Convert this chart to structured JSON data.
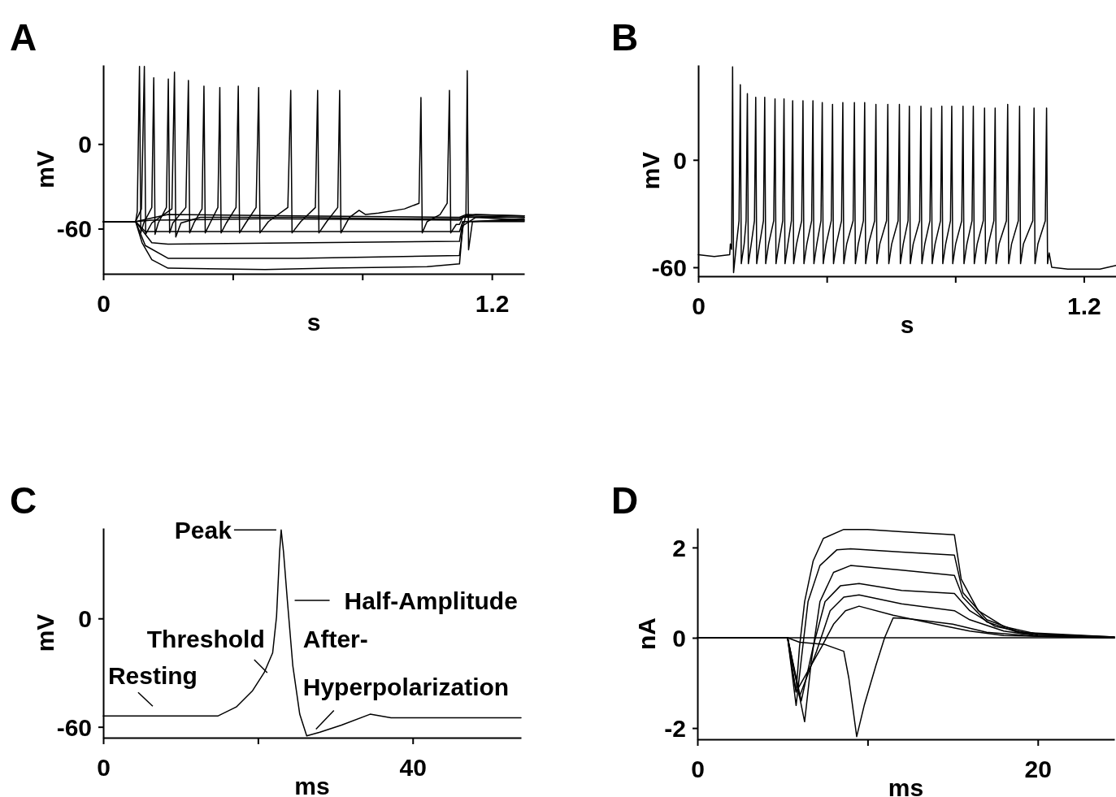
{
  "chart_data": [
    {
      "type": "line",
      "title": "A",
      "xlabel": "s",
      "ylabel": "mV",
      "xlim": [
        0,
        1.3
      ],
      "ylim": [
        -92,
        56
      ],
      "xticks": [
        0,
        {
          "value": 0.4,
          "label": null
        },
        {
          "value": 0.8,
          "label": null
        },
        1.2
      ],
      "yticks": [
        -60,
        0
      ],
      "series": [
        {
          "color": "#000000",
          "x": [
            0,
            0.1,
            0.12,
            0.15,
            0.2,
            0.5,
            0.7,
            1.0,
            1.1,
            1.11,
            1.15,
            1.3
          ],
          "values": [
            -55,
            -55,
            -70,
            -82,
            -88,
            -89,
            -88,
            -87,
            -85,
            -58,
            -52,
            -54
          ]
        },
        {
          "color": "#000000",
          "x": [
            0,
            0.1,
            0.13,
            0.2,
            0.6,
            1.1,
            1.11,
            1.12,
            1.124,
            1.128,
            1.14,
            1.3
          ],
          "values": [
            -55,
            -55,
            -72,
            -81,
            -81,
            -79,
            -60,
            -50,
            52,
            -75,
            -55,
            -53
          ]
        },
        {
          "color": "#000000",
          "x": [
            0,
            0.1,
            0.15,
            0.2,
            1.1,
            1.11,
            1.3
          ],
          "values": [
            -55,
            -55,
            -70,
            -71,
            -69,
            -55,
            -55
          ]
        },
        {
          "color": "#000000",
          "x": [
            0,
            0.1,
            0.13,
            1.1,
            1.11,
            1.3
          ],
          "values": [
            -55,
            -55,
            -62,
            -62,
            -55,
            -54
          ]
        },
        {
          "color": "#000000",
          "x": [
            0,
            0.1,
            0.15,
            0.5,
            1.1,
            1.11,
            1.3
          ],
          "values": [
            -55,
            -55,
            -54,
            -53,
            -54,
            -52,
            -52
          ]
        },
        {
          "color": "#000000",
          "x": [
            0,
            0.1,
            0.2,
            0.6,
            1.1,
            1.12,
            1.3
          ],
          "values": [
            -55,
            -55,
            -50,
            -51,
            -52,
            -50,
            -51
          ]
        },
        {
          "color": "#000000",
          "x": [
            0,
            0.1,
            0.105,
            0.112,
            0.116,
            0.125,
            0.15,
            0.156,
            0.16,
            0.17,
            0.195,
            0.201,
            0.205,
            0.215,
            0.255,
            0.263,
            0.267,
            0.28,
            0.305,
            0.311,
            0.315,
            0.33,
            0.354,
            0.36,
            0.364,
            0.38,
            0.41,
            0.417,
            0.421,
            0.44,
            0.472,
            0.48,
            0.484,
            0.51,
            0.57,
            0.579,
            0.583,
            0.61,
            0.655,
            0.662,
            0.666,
            0.69,
            0.724,
            0.73,
            0.734,
            0.76,
            0.79,
            0.81,
            0.85,
            0.93,
            0.975,
            0.981,
            0.985,
            1.0,
            1.04,
            1.062,
            1.069,
            1.073,
            1.09,
            1.1,
            1.11,
            1.15,
            1.3
          ],
          "values": [
            -55,
            -55,
            -48,
            55,
            -63,
            -56,
            -45,
            47,
            -64,
            -56,
            -45,
            46,
            -63,
            -56,
            -45,
            45,
            -63,
            -56,
            -46,
            41,
            -63,
            -56,
            -45,
            40,
            -63,
            -56,
            -45,
            41,
            -63,
            -56,
            -45,
            40,
            -63,
            -55,
            -45,
            38,
            -63,
            -55,
            -45,
            38,
            -63,
            -55,
            -45,
            38,
            -63,
            -52,
            -47,
            -50,
            -49,
            -46,
            -42,
            33,
            -63,
            -55,
            -50,
            -42,
            38,
            -63,
            -57,
            -57,
            -52,
            -50,
            -51
          ]
        },
        {
          "color": "#000000",
          "x": [
            0,
            0.1,
            0.118,
            0.127,
            0.131,
            0.15,
            0.212,
            0.22,
            0.224,
            0.24,
            0.3,
            0.6,
            0.9,
            1.1,
            1.12,
            1.3
          ],
          "values": [
            -55,
            -55,
            -46,
            55,
            -64,
            -56,
            -46,
            51,
            -66,
            -56,
            -52,
            -52,
            -53,
            -53,
            -51,
            -52
          ]
        }
      ]
    },
    {
      "type": "line",
      "title": "B",
      "xlabel": "s",
      "ylabel": "mV",
      "xlim": [
        0,
        1.3
      ],
      "ylim": [
        -65,
        53
      ],
      "xticks": [
        0,
        {
          "value": 0.4,
          "label": null
        },
        {
          "value": 0.8,
          "label": null
        },
        1.2
      ],
      "yticks": [
        -60,
        0
      ],
      "series": [
        {
          "color": "#000000",
          "x": [
            0,
            0.05,
            0.098,
            0.1,
            0.104,
            0.107,
            0.11,
            0.119,
            0.127,
            0.131,
            0.134,
            0.143,
            0.149,
            0.153,
            0.156,
            0.165,
            0.175,
            0.179,
            0.182,
            0.191,
            0.203,
            0.207,
            0.21,
            0.219,
            0.235,
            0.239,
            0.242,
            0.251,
            0.263,
            0.267,
            0.27,
            0.279,
            0.29,
            0.294,
            0.297,
            0.306,
            0.322,
            0.326,
            0.329,
            0.338,
            0.353,
            0.357,
            0.36,
            0.369,
            0.382,
            0.386,
            0.389,
            0.398,
            0.414,
            0.418,
            0.421,
            0.43,
            0.446,
            0.45,
            0.453,
            0.462,
            0.482,
            0.486,
            0.489,
            0.498,
            0.514,
            0.518,
            0.521,
            0.53,
            0.549,
            0.553,
            0.556,
            0.565,
            0.586,
            0.59,
            0.593,
            0.602,
            0.622,
            0.626,
            0.629,
            0.638,
            0.653,
            0.657,
            0.66,
            0.669,
            0.689,
            0.693,
            0.696,
            0.705,
            0.721,
            0.725,
            0.728,
            0.737,
            0.754,
            0.758,
            0.761,
            0.77,
            0.785,
            0.789,
            0.792,
            0.801,
            0.82,
            0.824,
            0.827,
            0.836,
            0.852,
            0.856,
            0.859,
            0.868,
            0.887,
            0.891,
            0.894,
            0.903,
            0.92,
            0.924,
            0.927,
            0.936,
            0.959,
            0.963,
            0.966,
            0.975,
            0.996,
            1.0,
            1.003,
            1.012,
            1.041,
            1.045,
            1.048,
            1.057,
            1.08,
            1.084,
            1.087,
            1.092,
            1.095,
            1.1,
            1.15,
            1.25,
            1.3
          ],
          "values": [
            -53,
            -54,
            -53,
            -47,
            -50,
            52,
            -63,
            -47,
            -34,
            42,
            -58,
            -47,
            -34,
            37,
            -58,
            -47,
            -34,
            35,
            -58,
            -47,
            -34,
            35,
            -58,
            -47,
            -34,
            34,
            -58,
            -47,
            -34,
            34,
            -58,
            -47,
            -34,
            33,
            -58,
            -47,
            -34,
            33,
            -58,
            -47,
            -34,
            33,
            -58,
            -47,
            -34,
            32,
            -58,
            -47,
            -34,
            31,
            -58,
            -47,
            -34,
            32,
            -58,
            -47,
            -34,
            32,
            -58,
            -47,
            -34,
            32,
            -58,
            -47,
            -34,
            31,
            -58,
            -47,
            -34,
            31,
            -58,
            -47,
            -34,
            31,
            -58,
            -47,
            -34,
            30,
            -58,
            -47,
            -34,
            30,
            -58,
            -47,
            -34,
            29,
            -58,
            -47,
            -34,
            30,
            -58,
            -47,
            -34,
            30,
            -58,
            -47,
            -34,
            30,
            -58,
            -47,
            -34,
            30,
            -58,
            -47,
            -34,
            29,
            -58,
            -47,
            -34,
            29,
            -58,
            -47,
            -34,
            31,
            -58,
            -47,
            -34,
            30,
            -58,
            -47,
            -34,
            29,
            -58,
            -47,
            -34,
            29,
            -58,
            -52,
            -55,
            -60,
            -61,
            -61,
            -59
          ]
        }
      ]
    },
    {
      "type": "line",
      "title": "C",
      "xlabel": "ms",
      "ylabel": "mV",
      "xlim": [
        0,
        54
      ],
      "ylim": [
        -66,
        50
      ],
      "xticks": [
        0,
        {
          "value": 20,
          "label": null
        },
        40
      ],
      "yticks": [
        -60,
        0
      ],
      "series": [
        {
          "color": "#000000",
          "x": [
            0,
            14.8,
            17.2,
            19.3,
            20.8,
            21.9,
            22.4,
            22.8,
            23,
            23.3,
            23.8,
            24.5,
            25.4,
            26.3,
            28,
            30.8,
            34.5,
            37.2,
            54
          ],
          "values": [
            -54,
            -54,
            -49,
            -40,
            -30,
            -19,
            1,
            37,
            49,
            37,
            10,
            -26,
            -53,
            -65,
            -63,
            -59,
            -53,
            -55,
            -55
          ]
        }
      ],
      "annotations": [
        {
          "text": "Peak",
          "x": 23,
          "y": 49
        },
        {
          "text": "Half-Amplitude",
          "x": 23.8,
          "y": 10
        },
        {
          "text": "Threshold",
          "x": 21.2,
          "y": -30
        },
        {
          "text": "Resting",
          "x": 6.4,
          "y": -54
        },
        {
          "text": "After-Hyperpolarization",
          "x": 27.5,
          "y": -64
        }
      ]
    },
    {
      "type": "line",
      "title": "D",
      "xlabel": "ms",
      "ylabel": "nA",
      "xlim": [
        0,
        24.5
      ],
      "ylim": [
        -2.25,
        2.43
      ],
      "xticks": [
        0,
        {
          "value": 10,
          "label": null
        },
        20
      ],
      "yticks": [
        -2,
        0,
        2
      ],
      "series": [
        {
          "color": "#000000",
          "x": [
            0,
            5.3,
            5.6,
            5.8,
            6,
            6.3,
            6.8,
            7.4,
            8.6,
            10,
            12,
            15.1,
            15.5,
            16.5,
            18,
            20,
            24.5
          ],
          "values": [
            0,
            0,
            -0.8,
            -1.2,
            -0.2,
            0.8,
            1.7,
            2.2,
            2.4,
            2.4,
            2.35,
            2.28,
            1.3,
            0.6,
            0.25,
            0.08,
            0.02
          ]
        },
        {
          "color": "#000000",
          "x": [
            0,
            5.3,
            5.8,
            6.1,
            6.5,
            7.2,
            8.2,
            9,
            12,
            15.1,
            15.6,
            17,
            19,
            24.5
          ],
          "values": [
            0,
            0,
            -1.5,
            -0.5,
            0.8,
            1.6,
            1.95,
            1.97,
            1.9,
            1.83,
            1,
            0.4,
            0.12,
            0.02
          ]
        },
        {
          "color": "#000000",
          "x": [
            0,
            5.3,
            6.3,
            6.7,
            7.2,
            8,
            9,
            12,
            15.1,
            15.6,
            17,
            19,
            24.5
          ],
          "values": [
            0,
            0,
            -1.86,
            -0.5,
            0.8,
            1.45,
            1.6,
            1.5,
            1.38,
            0.9,
            0.35,
            0.1,
            0.01
          ]
        },
        {
          "color": "#000000",
          "x": [
            0,
            5.3,
            6.1,
            6.8,
            7.5,
            8.4,
            9.5,
            12,
            15.1,
            16,
            17.5,
            20,
            24.5
          ],
          "values": [
            0,
            0,
            -1.4,
            -0.2,
            0.8,
            1.15,
            1.2,
            1.05,
            0.98,
            0.6,
            0.25,
            0.06,
            0.01
          ]
        },
        {
          "color": "#000000",
          "x": [
            0,
            5.3,
            6,
            7,
            7.8,
            8.6,
            9.5,
            12,
            15.1,
            16,
            18,
            20,
            24.5
          ],
          "values": [
            0,
            0,
            -1.3,
            -0.3,
            0.6,
            0.9,
            0.95,
            0.75,
            0.6,
            0.4,
            0.15,
            0.04,
            0
          ]
        },
        {
          "color": "#000000",
          "x": [
            0,
            5.3,
            5.8,
            7.3,
            8,
            8.7,
            9.5,
            11.5,
            14,
            16,
            18,
            24.5
          ],
          "values": [
            0,
            0,
            -1.2,
            -0.2,
            0.3,
            0.6,
            0.7,
            0.5,
            0.3,
            0.15,
            0.05,
            0
          ]
        },
        {
          "color": "#000000",
          "x": [
            0,
            5.3,
            6,
            7.5,
            8.6,
            8.9,
            9.36,
            9.8,
            10.5,
            11,
            11.5,
            12.5,
            15,
            17,
            20,
            24.5
          ],
          "values": [
            0,
            0,
            -0.1,
            -0.15,
            -0.3,
            -0.9,
            -2.19,
            -1.5,
            -0.6,
            0,
            0.44,
            0.42,
            0.3,
            0.12,
            0.03,
            0
          ]
        },
        {
          "color": "#000000",
          "x": [
            0,
            24.5
          ],
          "values": [
            0,
            0
          ]
        }
      ]
    }
  ]
}
